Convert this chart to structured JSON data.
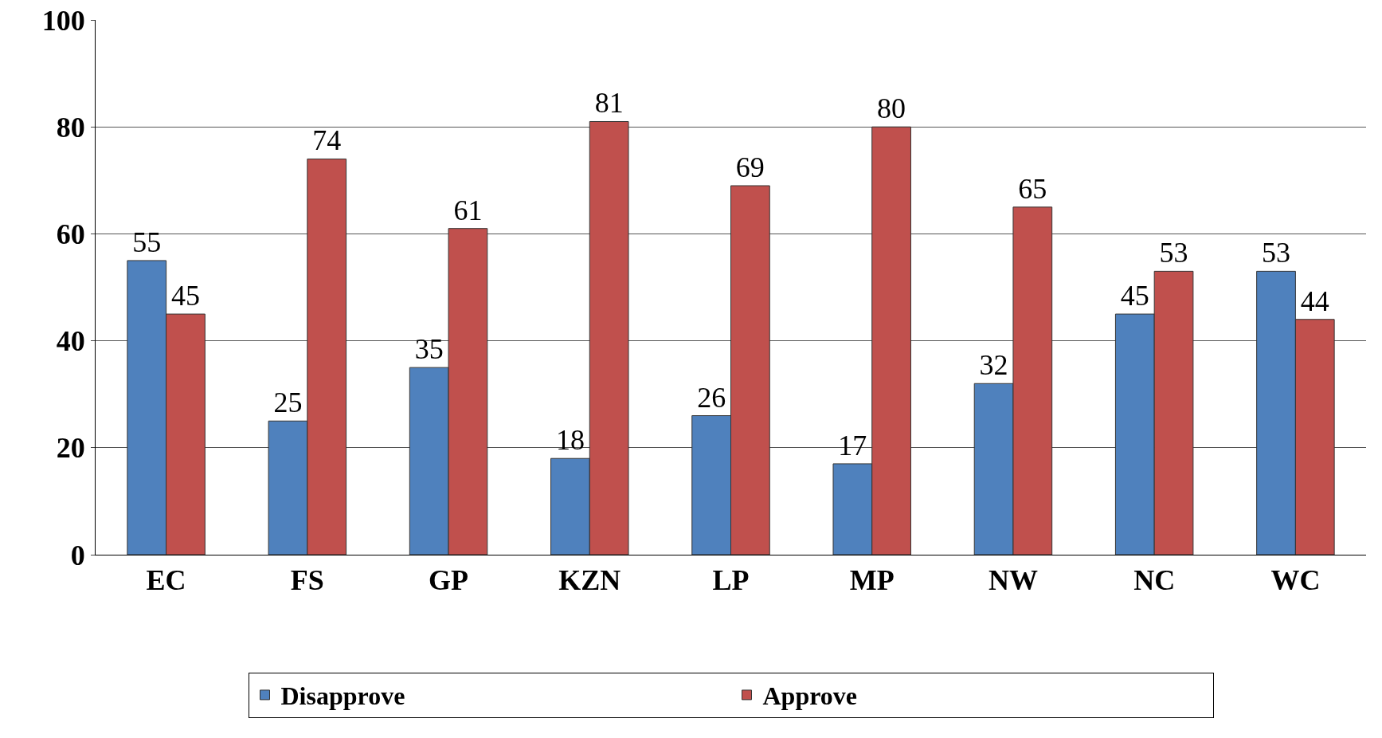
{
  "chart_data": {
    "type": "bar",
    "categories": [
      "EC",
      "FS",
      "GP",
      "KZN",
      "LP",
      "MP",
      "NW",
      "NC",
      "WC"
    ],
    "series": [
      {
        "name": "Disapprove",
        "color": "#4f81bd",
        "values": [
          55,
          25,
          35,
          18,
          26,
          17,
          32,
          45,
          53
        ]
      },
      {
        "name": "Approve",
        "color": "#c0504d",
        "values": [
          45,
          74,
          61,
          81,
          69,
          80,
          65,
          53,
          44
        ]
      }
    ],
    "ylim": [
      0,
      100
    ],
    "yticks": [
      0,
      20,
      40,
      60,
      80,
      100
    ],
    "grid": "y",
    "legend": "bottom",
    "data_labels": true
  }
}
